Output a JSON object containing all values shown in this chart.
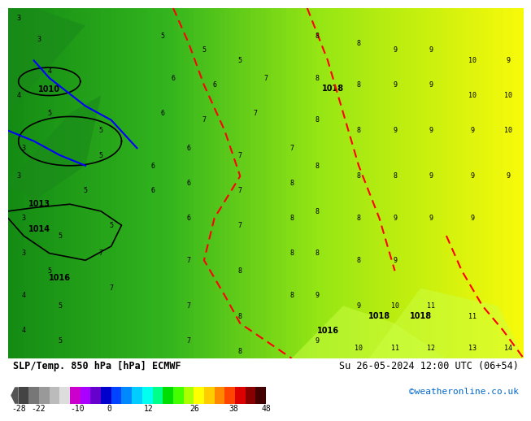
{
  "title_left": "SLP/Temp. 850 hPa [hPa] ECMWF",
  "title_right": "Su 26-05-2024 12:00 UTC (06+54)",
  "credit": "©weatheronline.co.uk",
  "colorbar_values": [
    -28,
    -22,
    -10,
    0,
    12,
    26,
    38,
    48
  ],
  "colorbar_colors": [
    "#555555",
    "#888888",
    "#aaaaaa",
    "#cccccc",
    "#cc00cc",
    "#8800cc",
    "#0000cc",
    "#0044ff",
    "#0088ff",
    "#00ccff",
    "#00ffcc",
    "#00ff88",
    "#00ff00",
    "#88ff00",
    "#ccff00",
    "#ffff00",
    "#ffcc00",
    "#ff8800",
    "#ff4400",
    "#ff0000",
    "#cc0000",
    "#880000",
    "#440000"
  ],
  "bg_map_color_left": "#22aa22",
  "bg_map_color_right": "#aaff00",
  "bg_color": "#ffffff",
  "bottom_bar_color": "#000000",
  "credit_color": "#0066cc",
  "label_fontsize": 9,
  "credit_fontsize": 8
}
